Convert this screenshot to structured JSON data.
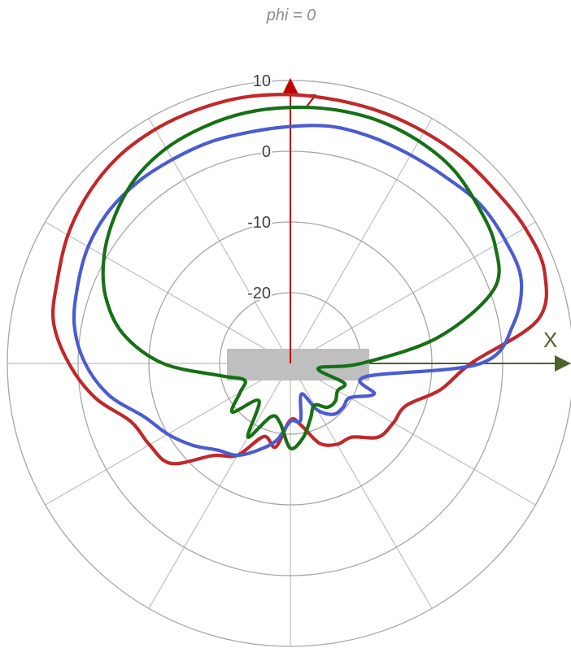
{
  "chart_data": {
    "type": "polar-line",
    "title": "phi = 0",
    "r_range": [
      -30,
      10
    ],
    "r_ticks": [
      10,
      0,
      -10,
      -20
    ],
    "angle_step_deg": 30,
    "axes": {
      "z": {
        "label": "Z",
        "color": "#c00000"
      },
      "x": {
        "label": "X",
        "color": "#4f6228"
      }
    },
    "object_marker": {
      "shape": "rectangle",
      "color": "#bfbfbf"
    },
    "colors": {
      "grid": "#bfbfbf",
      "ring": "#a6a6a6"
    },
    "series": [
      {
        "color": "#c0282a",
        "theta_deg": [
          -180,
          -170,
          -160,
          -150,
          -140,
          -130,
          -120,
          -110,
          -100,
          -90,
          -80,
          -70,
          -60,
          -50,
          -40,
          -30,
          -20,
          -10,
          0,
          10,
          20,
          30,
          40,
          50,
          60,
          70,
          80,
          90,
          100,
          110,
          120,
          130,
          140,
          150,
          160,
          170,
          180
        ],
        "values": [
          -22,
          -18,
          -19,
          -15,
          -13,
          -8,
          -7,
          -6,
          -2,
          1.3,
          4,
          5,
          6.3,
          7.3,
          8,
          8.2,
          8.2,
          8.2,
          8,
          7.8,
          7.8,
          7.8,
          7.9,
          7.9,
          8.3,
          8.2,
          5.5,
          -4.5,
          -8.5,
          -12.6,
          -13.2,
          -13.8,
          -16.4,
          -16.8,
          -18,
          -21.1,
          -22
        ]
      },
      {
        "color": "#4a5cd0",
        "theta_deg": [
          -180,
          -170,
          -160,
          -150,
          -140,
          -130,
          -120,
          -110,
          -100,
          -90,
          -80,
          -70,
          -60,
          -50,
          -40,
          -30,
          -20,
          -10,
          0,
          10,
          20,
          30,
          40,
          50,
          60,
          70,
          80,
          90,
          100,
          110,
          120,
          130,
          140,
          150,
          160,
          170,
          180
        ],
        "values": [
          -21.8,
          -19,
          -17,
          -15,
          -14,
          -12,
          -10,
          -8,
          -4,
          -1,
          1,
          2,
          3,
          3.5,
          3.5,
          3.3,
          3.3,
          3.2,
          3.5,
          4,
          4,
          4,
          4.3,
          5,
          5,
          4.7,
          2,
          -3.1,
          -19.2,
          -17.4,
          -20.3,
          -20.3,
          -20.6,
          -22.4,
          -25.4,
          -21.8,
          -21.8
        ]
      },
      {
        "color": "#167016",
        "theta_deg": [
          -180,
          -170,
          -160,
          -150,
          -140,
          -130,
          -120,
          -110,
          -100,
          -90,
          -80,
          -70,
          -60,
          -50,
          -40,
          -30,
          -20,
          -10,
          0,
          10,
          20,
          30,
          40,
          50,
          60,
          70,
          80,
          90,
          100,
          110,
          120,
          130,
          140,
          150,
          160,
          170,
          180
        ],
        "values": [
          -18,
          -21.5,
          -22,
          -18,
          -23.1,
          -19.3,
          -21.8,
          -23.1,
          -20,
          -12,
          -6,
          -2.2,
          0.4,
          2.4,
          4.1,
          5.1,
          5.6,
          6,
          6.2,
          6.4,
          6.5,
          6.3,
          5.8,
          4.6,
          3.4,
          0.6,
          -8.8,
          -20,
          -26,
          -21.9,
          -22.3,
          -21.7,
          -21.9,
          -23.2,
          -21.7,
          -19.4,
          -18
        ]
      }
    ]
  }
}
